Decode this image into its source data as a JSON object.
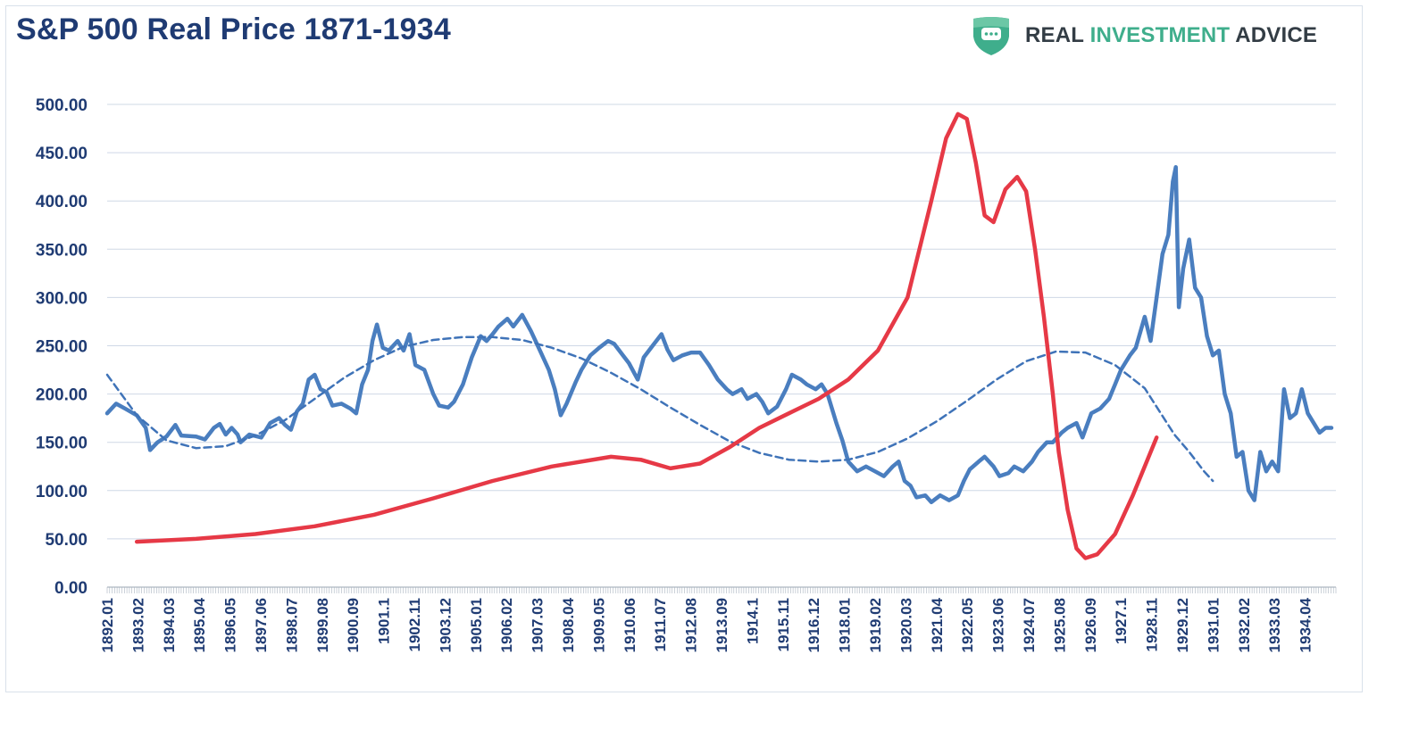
{
  "header": {
    "title": "S&P 500 Real Price 1871-1934",
    "brand_part1": "REAL ",
    "brand_part2": "INVESTMENT",
    "brand_part3": " ADVICE",
    "brand_icon": "shield-chat-icon"
  },
  "colors": {
    "title": "#1f3b73",
    "axis_text": "#1f3b73",
    "grid": "#cfd8e6",
    "price_line": "#4a7ebf",
    "trend_line": "#3f73b8",
    "annotation": "#e63946",
    "brand_green": "#3fae8c",
    "brand_gray": "#333d45"
  },
  "chart_data": {
    "type": "line",
    "title": "S&P 500 Real Price 1871-1934",
    "xlabel": "",
    "ylabel": "",
    "ylim": [
      0,
      500
    ],
    "y_ticks": [
      "0.00",
      "50.00",
      "100.00",
      "150.00",
      "200.00",
      "250.00",
      "300.00",
      "350.00",
      "400.00",
      "450.00",
      "500.00"
    ],
    "x_ticks": [
      "1892.01",
      "1893.02",
      "1894.03",
      "1895.04",
      "1896.05",
      "1897.06",
      "1898.07",
      "1899.08",
      "1900.09",
      "1901.1",
      "1902.11",
      "1903.12",
      "1905.01",
      "1906.02",
      "1907.03",
      "1908.04",
      "1909.05",
      "1910.06",
      "1911.07",
      "1912.08",
      "1913.09",
      "1914.1",
      "1915.11",
      "1916.12",
      "1918.01",
      "1919.02",
      "1920.03",
      "1921.04",
      "1922.05",
      "1923.06",
      "1924.07",
      "1925.08",
      "1926.09",
      "1927.1",
      "1928.11",
      "1929.12",
      "1931.01",
      "1932.02",
      "1933.03",
      "1934.04"
    ],
    "grid": true,
    "legend": "none",
    "series": [
      {
        "style": "solid-thick",
        "points": [
          [
            1892.0,
            180
          ],
          [
            1892.3,
            190
          ],
          [
            1892.6,
            185
          ],
          [
            1893.0,
            178
          ],
          [
            1893.3,
            165
          ],
          [
            1893.45,
            142
          ],
          [
            1893.7,
            150
          ],
          [
            1894.0,
            156
          ],
          [
            1894.3,
            168
          ],
          [
            1894.5,
            157
          ],
          [
            1895.0,
            156
          ],
          [
            1895.3,
            153
          ],
          [
            1895.6,
            165
          ],
          [
            1895.8,
            169
          ],
          [
            1896.0,
            158
          ],
          [
            1896.2,
            165
          ],
          [
            1896.4,
            158
          ],
          [
            1896.5,
            150
          ],
          [
            1896.8,
            158
          ],
          [
            1897.2,
            155
          ],
          [
            1897.5,
            170
          ],
          [
            1897.8,
            175
          ],
          [
            1898.0,
            168
          ],
          [
            1898.2,
            163
          ],
          [
            1898.4,
            182
          ],
          [
            1898.6,
            190
          ],
          [
            1898.8,
            215
          ],
          [
            1899.0,
            220
          ],
          [
            1899.2,
            205
          ],
          [
            1899.4,
            202
          ],
          [
            1899.6,
            188
          ],
          [
            1899.9,
            190
          ],
          [
            1900.2,
            185
          ],
          [
            1900.4,
            180
          ],
          [
            1900.6,
            210
          ],
          [
            1900.8,
            225
          ],
          [
            1900.95,
            255
          ],
          [
            1901.1,
            272
          ],
          [
            1901.3,
            248
          ],
          [
            1901.5,
            245
          ],
          [
            1901.8,
            255
          ],
          [
            1902.0,
            245
          ],
          [
            1902.2,
            262
          ],
          [
            1902.4,
            230
          ],
          [
            1902.7,
            225
          ],
          [
            1903.0,
            200
          ],
          [
            1903.2,
            188
          ],
          [
            1903.5,
            186
          ],
          [
            1903.7,
            192
          ],
          [
            1904.0,
            210
          ],
          [
            1904.3,
            238
          ],
          [
            1904.6,
            260
          ],
          [
            1904.8,
            255
          ],
          [
            1905.0,
            262
          ],
          [
            1905.2,
            270
          ],
          [
            1905.5,
            278
          ],
          [
            1905.7,
            270
          ],
          [
            1906.0,
            282
          ],
          [
            1906.3,
            265
          ],
          [
            1906.6,
            245
          ],
          [
            1906.9,
            225
          ],
          [
            1907.1,
            205
          ],
          [
            1907.3,
            178
          ],
          [
            1907.5,
            190
          ],
          [
            1907.8,
            212
          ],
          [
            1908.0,
            225
          ],
          [
            1908.3,
            240
          ],
          [
            1908.6,
            248
          ],
          [
            1908.9,
            255
          ],
          [
            1909.1,
            252
          ],
          [
            1909.4,
            240
          ],
          [
            1909.6,
            232
          ],
          [
            1909.9,
            215
          ],
          [
            1910.1,
            238
          ],
          [
            1910.4,
            250
          ],
          [
            1910.7,
            262
          ],
          [
            1910.9,
            246
          ],
          [
            1911.1,
            235
          ],
          [
            1911.4,
            240
          ],
          [
            1911.7,
            243
          ],
          [
            1912.0,
            243
          ],
          [
            1912.3,
            230
          ],
          [
            1912.6,
            215
          ],
          [
            1912.9,
            205
          ],
          [
            1913.1,
            200
          ],
          [
            1913.4,
            205
          ],
          [
            1913.6,
            195
          ],
          [
            1913.9,
            200
          ],
          [
            1914.1,
            192
          ],
          [
            1914.3,
            180
          ],
          [
            1914.6,
            187
          ],
          [
            1914.9,
            205
          ],
          [
            1915.1,
            220
          ],
          [
            1915.4,
            215
          ],
          [
            1915.6,
            210
          ],
          [
            1915.9,
            205
          ],
          [
            1916.1,
            210
          ],
          [
            1916.3,
            200
          ],
          [
            1916.6,
            170
          ],
          [
            1916.8,
            152
          ],
          [
            1917.0,
            130
          ],
          [
            1917.3,
            120
          ],
          [
            1917.6,
            125
          ],
          [
            1917.9,
            120
          ],
          [
            1918.2,
            115
          ],
          [
            1918.5,
            125
          ],
          [
            1918.7,
            130
          ],
          [
            1918.9,
            110
          ],
          [
            1919.1,
            105
          ],
          [
            1919.3,
            93
          ],
          [
            1919.6,
            95
          ],
          [
            1919.8,
            88
          ],
          [
            1920.1,
            95
          ],
          [
            1920.4,
            90
          ],
          [
            1920.7,
            95
          ],
          [
            1920.9,
            110
          ],
          [
            1921.1,
            122
          ],
          [
            1921.4,
            130
          ],
          [
            1921.6,
            135
          ],
          [
            1921.9,
            125
          ],
          [
            1922.1,
            115
          ],
          [
            1922.4,
            118
          ],
          [
            1922.6,
            125
          ],
          [
            1922.9,
            120
          ],
          [
            1923.2,
            130
          ],
          [
            1923.4,
            140
          ],
          [
            1923.7,
            150
          ],
          [
            1923.9,
            150
          ],
          [
            1924.2,
            160
          ],
          [
            1924.4,
            165
          ],
          [
            1924.7,
            170
          ],
          [
            1924.9,
            155
          ],
          [
            1925.2,
            180
          ],
          [
            1925.5,
            185
          ],
          [
            1925.8,
            195
          ],
          [
            1926.0,
            210
          ],
          [
            1926.2,
            225
          ],
          [
            1926.5,
            240
          ],
          [
            1926.7,
            248
          ],
          [
            1927.0,
            280
          ],
          [
            1927.2,
            255
          ],
          [
            1927.4,
            300
          ],
          [
            1927.6,
            345
          ],
          [
            1927.8,
            365
          ],
          [
            1927.95,
            420
          ],
          [
            1928.05,
            435
          ],
          [
            1928.15,
            290
          ],
          [
            1928.3,
            330
          ],
          [
            1928.5,
            360
          ],
          [
            1928.7,
            310
          ],
          [
            1928.9,
            300
          ],
          [
            1929.1,
            260
          ],
          [
            1929.3,
            240
          ],
          [
            1929.5,
            245
          ],
          [
            1929.7,
            200
          ],
          [
            1929.9,
            180
          ],
          [
            1930.1,
            135
          ],
          [
            1930.3,
            140
          ],
          [
            1930.5,
            100
          ],
          [
            1930.7,
            90
          ],
          [
            1930.9,
            140
          ],
          [
            1931.1,
            120
          ],
          [
            1931.3,
            130
          ],
          [
            1931.5,
            120
          ],
          [
            1931.7,
            205
          ],
          [
            1931.9,
            175
          ],
          [
            1932.1,
            180
          ],
          [
            1932.3,
            205
          ],
          [
            1932.5,
            180
          ],
          [
            1932.7,
            170
          ],
          [
            1932.9,
            160
          ],
          [
            1933.1,
            165
          ],
          [
            1933.3,
            165
          ]
        ]
      },
      {
        "style": "dashed",
        "points": [
          [
            1892.0,
            220
          ],
          [
            1893.0,
            178
          ],
          [
            1894.0,
            152
          ],
          [
            1895.0,
            144
          ],
          [
            1896.0,
            146
          ],
          [
            1897.0,
            157
          ],
          [
            1898.0,
            173
          ],
          [
            1899.0,
            195
          ],
          [
            1900.0,
            217
          ],
          [
            1901.0,
            235
          ],
          [
            1902.0,
            249
          ],
          [
            1903.0,
            256
          ],
          [
            1904.0,
            259
          ],
          [
            1905.0,
            259
          ],
          [
            1906.0,
            256
          ],
          [
            1907.0,
            248
          ],
          [
            1908.0,
            237
          ],
          [
            1909.0,
            222
          ],
          [
            1910.0,
            205
          ],
          [
            1911.0,
            186
          ],
          [
            1912.0,
            168
          ],
          [
            1913.0,
            151
          ],
          [
            1914.0,
            139
          ],
          [
            1915.0,
            132
          ],
          [
            1916.0,
            130
          ],
          [
            1917.0,
            132
          ],
          [
            1918.0,
            140
          ],
          [
            1919.0,
            154
          ],
          [
            1920.0,
            172
          ],
          [
            1921.0,
            193
          ],
          [
            1922.0,
            215
          ],
          [
            1923.0,
            234
          ],
          [
            1924.0,
            244
          ],
          [
            1925.0,
            243
          ],
          [
            1926.0,
            230
          ],
          [
            1927.0,
            206
          ],
          [
            1927.5,
            182
          ],
          [
            1928.0,
            158
          ],
          [
            1928.5,
            140
          ],
          [
            1929.0,
            120
          ],
          [
            1929.3,
            110
          ]
        ]
      },
      {
        "style": "annotation",
        "points": [
          [
            1893.0,
            47
          ],
          [
            1895.0,
            50
          ],
          [
            1897.0,
            55
          ],
          [
            1899.0,
            63
          ],
          [
            1901.0,
            75
          ],
          [
            1903.0,
            92
          ],
          [
            1905.0,
            110
          ],
          [
            1907.0,
            125
          ],
          [
            1909.0,
            135
          ],
          [
            1910.0,
            132
          ],
          [
            1911.0,
            123
          ],
          [
            1912.0,
            128
          ],
          [
            1913.0,
            145
          ],
          [
            1914.0,
            165
          ],
          [
            1915.0,
            180
          ],
          [
            1916.0,
            195
          ],
          [
            1917.0,
            215
          ],
          [
            1918.0,
            245
          ],
          [
            1919.0,
            300
          ],
          [
            1919.8,
            400
          ],
          [
            1920.3,
            465
          ],
          [
            1920.7,
            490
          ],
          [
            1921.0,
            485
          ],
          [
            1921.3,
            440
          ],
          [
            1921.6,
            385
          ],
          [
            1921.9,
            378
          ],
          [
            1922.3,
            412
          ],
          [
            1922.7,
            425
          ],
          [
            1923.0,
            410
          ],
          [
            1923.3,
            350
          ],
          [
            1923.6,
            280
          ],
          [
            1923.9,
            200
          ],
          [
            1924.1,
            140
          ],
          [
            1924.4,
            80
          ],
          [
            1924.7,
            40
          ],
          [
            1925.0,
            30
          ],
          [
            1925.4,
            34
          ],
          [
            1926.0,
            55
          ],
          [
            1926.6,
            95
          ],
          [
            1927.4,
            155
          ]
        ]
      }
    ]
  }
}
